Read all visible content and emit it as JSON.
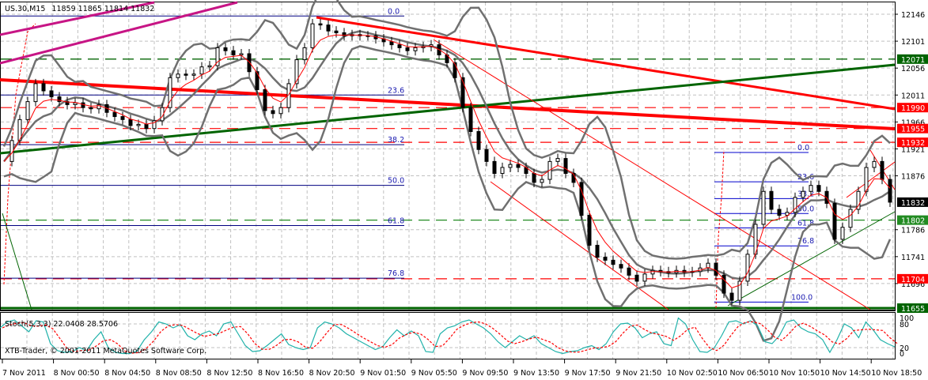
{
  "header": {
    "symbol": "US.30,M15",
    "ohlc": "11859 11865 11814 11832"
  },
  "stochastic": {
    "label": "Stoch(5,3,3) 22.0408 28.5706",
    "levels": [
      "100",
      "80",
      "20",
      "0"
    ]
  },
  "copyright": "XTB-Trader, © 2001-2011 MetaQuotes Software Corp.",
  "price_axis": {
    "ticks": [
      "12146",
      "12101",
      "12056",
      "12011",
      "11966",
      "11921",
      "11876",
      "11786",
      "11741",
      "11696"
    ],
    "tags": [
      {
        "value": "12071",
        "color": "#006400"
      },
      {
        "value": "11990",
        "color": "#ff0000"
      },
      {
        "value": "11955",
        "color": "#ff0000"
      },
      {
        "value": "11932",
        "color": "#ff0000"
      },
      {
        "value": "11832",
        "color": "#000000"
      },
      {
        "value": "11802",
        "color": "#228b22"
      },
      {
        "value": "11704",
        "color": "#ff0000"
      },
      {
        "value": "11655",
        "color": "#006400"
      }
    ]
  },
  "time_axis": {
    "labels": [
      "7 Nov 2011",
      "8 Nov 00:50",
      "8 Nov 04:50",
      "8 Nov 08:50",
      "8 Nov 12:50",
      "8 Nov 16:50",
      "8 Nov 20:50",
      "9 Nov 01:50",
      "9 Nov 05:50",
      "9 Nov 09:50",
      "9 Nov 13:50",
      "9 Nov 17:50",
      "9 Nov 21:50",
      "10 Nov 02:50",
      "10 Nov 06:50",
      "10 Nov 10:50",
      "10 Nov 14:50",
      "10 Nov 18:50"
    ]
  },
  "fibonacci_left": {
    "levels": [
      "0.0",
      "23.6",
      "38.2",
      "50.0",
      "61.8",
      "76.8"
    ]
  },
  "fibonacci_right": {
    "levels": [
      "0.0",
      "23.6",
      "38.2",
      "50.0",
      "61.8",
      "76.8",
      "100.0"
    ]
  },
  "colors": {
    "grid": "#c0c0c0",
    "bollinger": "#707070",
    "ma": "#ff0000",
    "support_green": "#006400",
    "resistance_red": "#ff0000",
    "trend_magenta": "#c71585",
    "fib_blue": "#0000b0",
    "stoch_main": "#20b2aa",
    "stoch_signal": "#ff0000"
  },
  "chart_data": {
    "type": "candlestick",
    "title": "US.30,M15",
    "ohlc_last": {
      "open": 11859,
      "high": 11865,
      "low": 11814,
      "close": 11832
    },
    "ylim": [
      11640,
      12165
    ],
    "horizontal_levels": [
      12071,
      11990,
      11955,
      11932,
      11802,
      11704,
      11655
    ],
    "indicators": [
      "Bollinger Bands",
      "Moving Average",
      "Stoch(5,3,3)"
    ],
    "stochastic_values": {
      "main": 22.0408,
      "signal": 28.5706
    }
  }
}
